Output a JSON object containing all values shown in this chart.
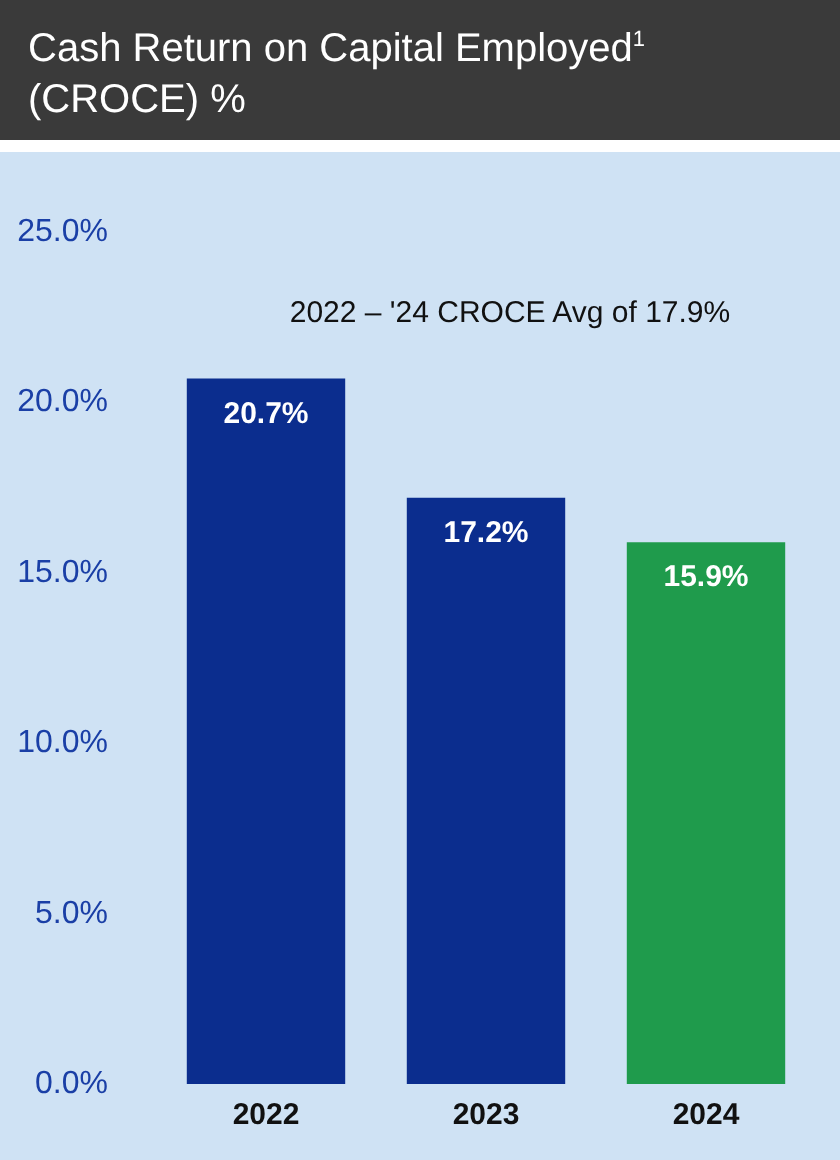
{
  "chart_data": {
    "type": "bar",
    "title": "Cash Return on Capital Employed$^{1}$ (CROCE) %",
    "categories": [
      "2022",
      "2023",
      "2024"
    ],
    "values": [
      20.7,
      17.2,
      15.9
    ],
    "colors": [
      "#0b2d8e",
      "#0b2d8e",
      "#1f9b4c"
    ],
    "value_labels": [
      "20.7%",
      "17.2%",
      "15.9%"
    ],
    "ylim": [
      0,
      25
    ],
    "yticks": [
      {
        "value": 0,
        "label": "0.0%"
      },
      {
        "value": 5,
        "label": "5.0%"
      },
      {
        "value": 10,
        "label": "10.0%"
      },
      {
        "value": 15,
        "label": "15.0%"
      },
      {
        "value": 20,
        "label": "20.0%"
      },
      {
        "value": 25,
        "label": "25.0%"
      }
    ],
    "annotations": [
      "2022 – '24 CROCE Avg of 17.9%"
    ]
  }
}
